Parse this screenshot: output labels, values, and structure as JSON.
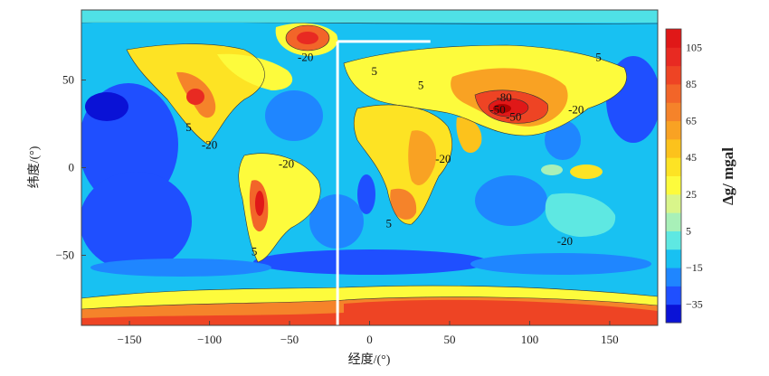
{
  "chart_data": {
    "type": "heatmap",
    "title": "",
    "xlabel": "经度/(°)",
    "ylabel": "纬度/(°)",
    "xlim": [
      -180,
      180
    ],
    "ylim": [
      -90,
      90
    ],
    "x_ticks": [
      -150,
      -100,
      -50,
      0,
      50,
      100,
      150
    ],
    "y_ticks": [
      50,
      0,
      -50
    ],
    "grid": false,
    "colorbar": {
      "label": "Δg/ mgal",
      "ticks": [
        105,
        85,
        65,
        45,
        25,
        5,
        -15,
        -35
      ],
      "range": [
        -45,
        115
      ],
      "colors": [
        "#0a12d6",
        "#1f4fff",
        "#1f86ff",
        "#18c1f2",
        "#5ee8e2",
        "#a8f0b8",
        "#d9f58a",
        "#fdfb3c",
        "#fde324",
        "#fcc21c",
        "#f9a223",
        "#f5832a",
        "#f26529",
        "#ee4424",
        "#e82a22",
        "#e01818"
      ]
    },
    "annotations": [
      {
        "text": "-20",
        "lon": -40,
        "lat": 63
      },
      {
        "text": "5",
        "lon": 3,
        "lat": 55
      },
      {
        "text": "5",
        "lon": 32,
        "lat": 47
      },
      {
        "text": "5",
        "lon": 143,
        "lat": 63
      },
      {
        "text": "-80",
        "lon": 84,
        "lat": 40
      },
      {
        "text": "-50",
        "lon": 80,
        "lat": 33
      },
      {
        "text": "-50",
        "lon": 90,
        "lat": 29
      },
      {
        "text": "-20",
        "lon": 129,
        "lat": 33
      },
      {
        "text": "5",
        "lon": -113,
        "lat": 23
      },
      {
        "text": "-20",
        "lon": -100,
        "lat": 13
      },
      {
        "text": "-20",
        "lon": -52,
        "lat": 2
      },
      {
        "text": "-20",
        "lon": 46,
        "lat": 5
      },
      {
        "text": "5",
        "lon": 12,
        "lat": -32
      },
      {
        "text": "-20",
        "lon": 122,
        "lat": -42
      },
      {
        "text": "5",
        "lon": -72,
        "lat": -48
      }
    ],
    "marked_lines": [
      {
        "name": "profile-vertical",
        "lon": [
          -20,
          -20
        ],
        "lat": [
          -90,
          72
        ]
      },
      {
        "name": "profile-horizontal",
        "lon": [
          -20,
          38
        ],
        "lat": [
          72,
          72
        ]
      }
    ]
  }
}
